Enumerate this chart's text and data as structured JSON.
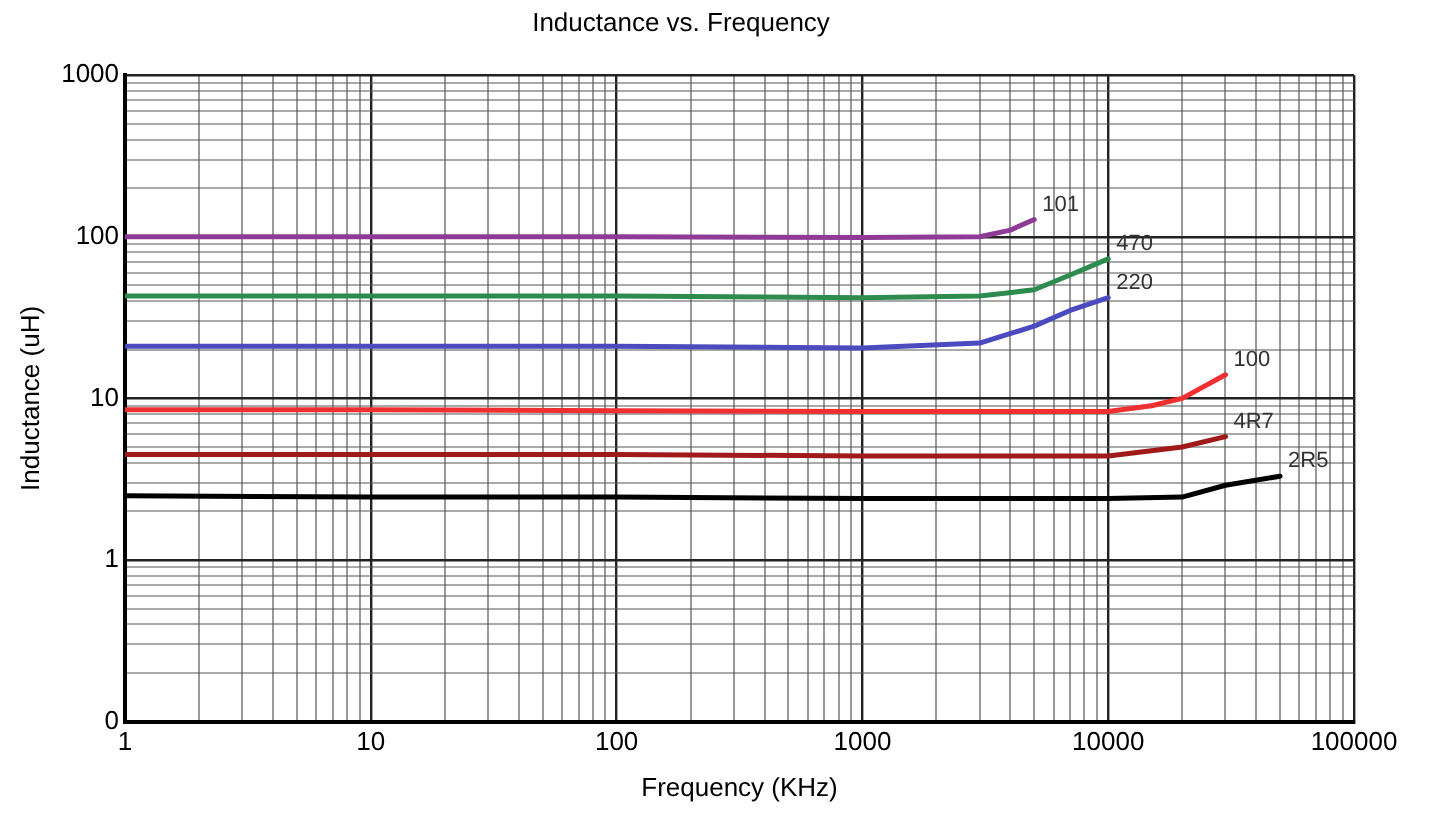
{
  "chart_data": {
    "type": "line",
    "title": "Inductance vs. Frequency",
    "xlabel": "Frequency (KHz)",
    "ylabel": "Inductance (uH)",
    "log": "xy",
    "grid": true,
    "legend": false,
    "marker": "none",
    "line_style": "solid",
    "xlim": [
      1,
      100000
    ],
    "xticks": [
      1,
      10,
      100,
      1000,
      10000,
      100000
    ],
    "ylim": [
      0.1,
      1000
    ],
    "yticks": [
      {
        "value": 0.1,
        "label": "0"
      },
      1,
      10,
      100,
      1000
    ],
    "series": [
      {
        "name": "101",
        "color": "#8e3a96",
        "x": [
          1,
          10,
          100,
          1000,
          3000,
          4000,
          5000
        ],
        "values": [
          100,
          100,
          100,
          99,
          100,
          110,
          128
        ]
      },
      {
        "name": "470",
        "color": "#2e8b4e",
        "x": [
          1,
          10,
          100,
          1000,
          3000,
          5000,
          7000,
          10000
        ],
        "values": [
          43,
          43,
          43,
          42,
          43,
          47,
          58,
          73
        ]
      },
      {
        "name": "220",
        "color": "#4b4bbf",
        "x": [
          1,
          10,
          100,
          1000,
          3000,
          5000,
          7000,
          10000
        ],
        "values": [
          21,
          21,
          21,
          20.5,
          22,
          28,
          35,
          42
        ]
      },
      {
        "name": "100",
        "color": "#f03030",
        "x": [
          1,
          10,
          100,
          1000,
          10000,
          15000,
          20000,
          30000
        ],
        "values": [
          8.5,
          8.5,
          8.4,
          8.3,
          8.3,
          9,
          10,
          14
        ]
      },
      {
        "name": "4R7",
        "color": "#a01a1a",
        "x": [
          1,
          10,
          100,
          1000,
          10000,
          20000,
          30000
        ],
        "values": [
          4.5,
          4.5,
          4.5,
          4.4,
          4.4,
          5,
          5.8
        ]
      },
      {
        "name": "2R5",
        "color": "#000000",
        "x": [
          1,
          10,
          100,
          1000,
          10000,
          20000,
          30000,
          50000
        ],
        "values": [
          2.5,
          2.45,
          2.45,
          2.4,
          2.4,
          2.45,
          2.9,
          3.3
        ]
      }
    ]
  }
}
